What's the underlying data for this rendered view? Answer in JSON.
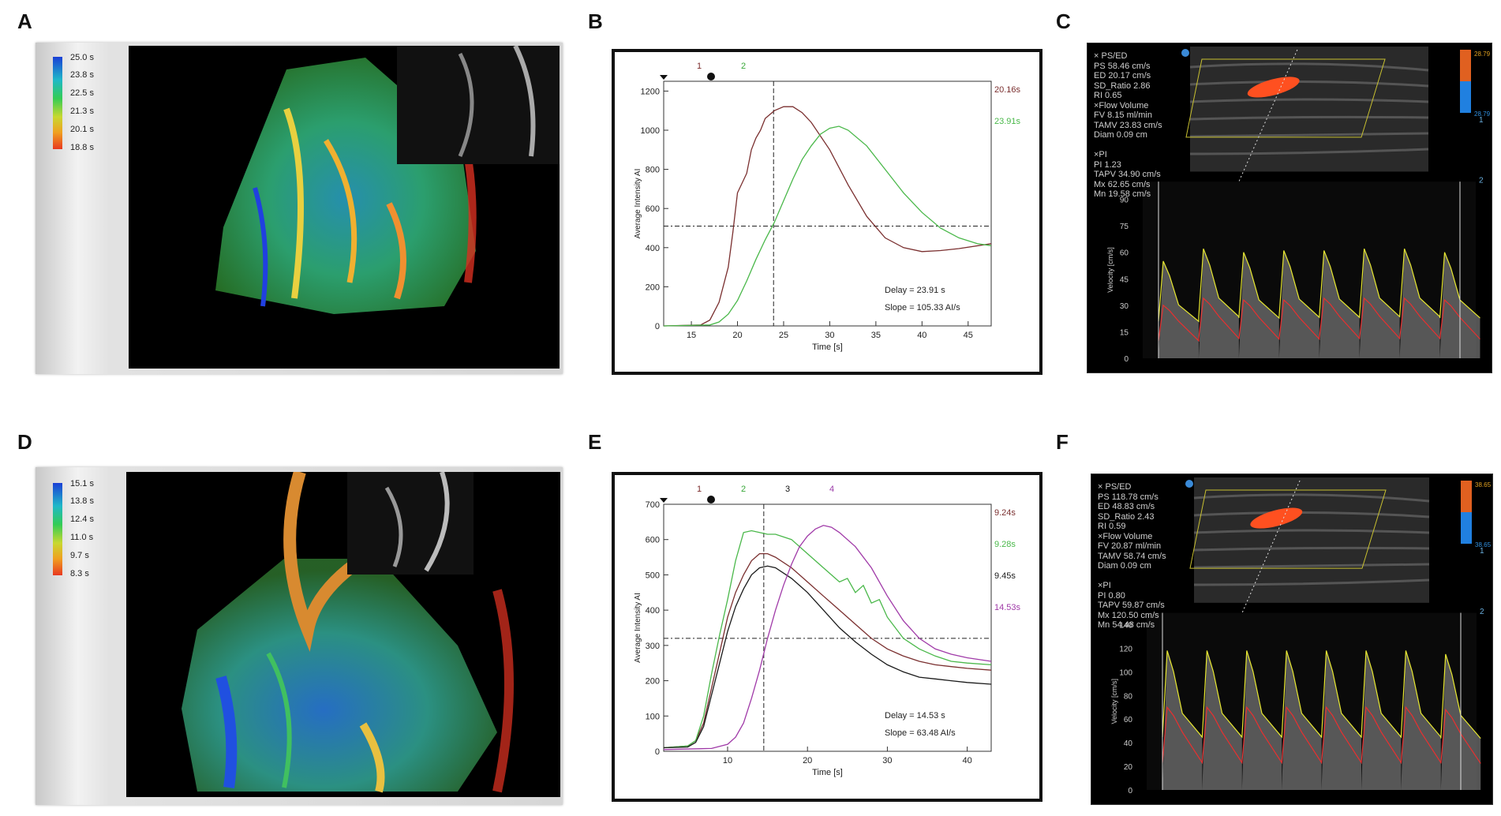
{
  "panels": {
    "A": "A",
    "B": "B",
    "C": "C",
    "D": "D",
    "E": "E",
    "F": "F"
  },
  "panelA": {
    "scale": [
      "25.0 s",
      "23.8 s",
      "22.5 s",
      "21.3 s",
      "20.1 s",
      "18.8 s"
    ],
    "scale_colors": [
      "#1a3fd6",
      "#1fb8c8",
      "#33cc55",
      "#c8d830",
      "#f0a020",
      "#e83820"
    ]
  },
  "panelD": {
    "scale": [
      "15.1 s",
      "13.8 s",
      "12.4 s",
      "11.0 s",
      "9.7 s",
      "8.3 s"
    ],
    "scale_colors": [
      "#1a3fd6",
      "#1fb8c8",
      "#33cc55",
      "#c8d830",
      "#f0a020",
      "#e83820"
    ]
  },
  "chart_data": [
    {
      "panel": "B",
      "type": "line",
      "xlabel": "Time [s]",
      "ylabel": "Average Intensity AI",
      "xlim": [
        12,
        47.5
      ],
      "ylim": [
        0,
        1250
      ],
      "xticks": [
        15,
        20,
        25,
        30,
        35,
        40,
        45
      ],
      "yticks": [
        0,
        200,
        400,
        600,
        800,
        1000,
        1200
      ],
      "marker_labels": [
        "1",
        "2"
      ],
      "marker_colors": [
        "#7a2a2a",
        "#3aa83a"
      ],
      "series": [
        {
          "name": "1",
          "color": "#7a2f2f",
          "right_label": "20.16s",
          "x": [
            12,
            16,
            17,
            18,
            19,
            19.5,
            20,
            21,
            21.5,
            22,
            22.5,
            23,
            24,
            25,
            26,
            27,
            28,
            30,
            32,
            34,
            36,
            38,
            40,
            42,
            44,
            47.5
          ],
          "y": [
            0,
            5,
            30,
            120,
            300,
            480,
            680,
            780,
            900,
            960,
            1000,
            1060,
            1100,
            1120,
            1120,
            1090,
            1040,
            900,
            720,
            560,
            450,
            400,
            380,
            385,
            395,
            420
          ]
        },
        {
          "name": "2",
          "color": "#4ab84a",
          "right_label": "23.91s",
          "x": [
            12,
            17,
            18,
            19,
            20,
            21,
            22,
            23,
            24,
            25,
            26,
            27,
            28,
            29,
            30,
            31,
            32,
            34,
            36,
            38,
            40,
            42,
            44,
            46,
            47.5
          ],
          "y": [
            0,
            5,
            20,
            60,
            130,
            230,
            340,
            440,
            530,
            640,
            750,
            850,
            920,
            980,
            1010,
            1020,
            1000,
            920,
            800,
            680,
            580,
            500,
            450,
            420,
            410
          ]
        }
      ],
      "threshold_y": 510,
      "delay_x": 23.91,
      "annotations": [
        "Delay = 23.91 s",
        "Slope = 105.33 AI/s"
      ]
    },
    {
      "panel": "E",
      "type": "line",
      "xlabel": "Time [s]",
      "ylabel": "Average Intensity AI",
      "xlim": [
        2,
        43
      ],
      "ylim": [
        0,
        700
      ],
      "xticks": [
        10,
        20,
        30,
        40
      ],
      "yticks": [
        0,
        100,
        200,
        300,
        400,
        500,
        600,
        700
      ],
      "marker_labels": [
        "1",
        "2",
        "3",
        "4"
      ],
      "marker_colors": [
        "#7a2a2a",
        "#3aa83a",
        "#111111",
        "#9a3aa8"
      ],
      "series": [
        {
          "name": "1",
          "color": "#7a2f2f",
          "right_label": "9.24s",
          "x": [
            2,
            5,
            6,
            7,
            8,
            9,
            10,
            11,
            12,
            13,
            14,
            15,
            16,
            18,
            20,
            22,
            24,
            26,
            28,
            30,
            32,
            34,
            36,
            38,
            40,
            43
          ],
          "y": [
            10,
            15,
            30,
            80,
            180,
            280,
            380,
            450,
            500,
            540,
            560,
            560,
            550,
            520,
            480,
            440,
            400,
            360,
            320,
            290,
            270,
            255,
            245,
            240,
            235,
            230
          ]
        },
        {
          "name": "2",
          "color": "#4ab84a",
          "right_label": "9.28s",
          "x": [
            2,
            5,
            6,
            7,
            8,
            9,
            10,
            11,
            12,
            13,
            14,
            15,
            16,
            18,
            20,
            22,
            24,
            25,
            26,
            27,
            28,
            29,
            30,
            32,
            34,
            36,
            38,
            40,
            43
          ],
          "y": [
            10,
            15,
            30,
            100,
            220,
            330,
            430,
            540,
            620,
            625,
            620,
            615,
            615,
            600,
            560,
            520,
            480,
            490,
            450,
            470,
            420,
            430,
            380,
            320,
            290,
            270,
            255,
            250,
            245
          ]
        },
        {
          "name": "3",
          "color": "#1a1a1a",
          "right_label": "9.45s",
          "x": [
            2,
            5,
            6,
            7,
            8,
            9,
            10,
            11,
            12,
            13,
            14,
            15,
            16,
            18,
            20,
            22,
            24,
            26,
            28,
            30,
            32,
            34,
            36,
            38,
            40,
            43
          ],
          "y": [
            10,
            12,
            25,
            70,
            160,
            250,
            340,
            410,
            460,
            500,
            520,
            525,
            520,
            490,
            450,
            400,
            350,
            310,
            275,
            245,
            225,
            210,
            205,
            200,
            195,
            190
          ]
        },
        {
          "name": "4",
          "color": "#a03aa8",
          "right_label": "14.53s",
          "x": [
            2,
            8,
            10,
            11,
            12,
            13,
            14,
            15,
            16,
            17,
            18,
            19,
            20,
            21,
            22,
            23,
            24,
            26,
            28,
            30,
            32,
            34,
            36,
            38,
            40,
            43
          ],
          "y": [
            5,
            8,
            20,
            40,
            80,
            150,
            230,
            320,
            400,
            470,
            530,
            580,
            610,
            630,
            640,
            635,
            620,
            580,
            520,
            440,
            370,
            320,
            290,
            275,
            265,
            255
          ]
        }
      ],
      "threshold_y": 320,
      "delay_x": 14.53,
      "annotations": [
        "Delay = 14.53 s",
        "Slope = 63.48 AI/s"
      ]
    },
    {
      "panel": "C",
      "type": "line",
      "ylabel": "Velocity [cm/s]",
      "ylim": [
        0,
        100
      ],
      "yticks": [
        0,
        15,
        30,
        45,
        60,
        75,
        90
      ],
      "series": [
        {
          "name": "",
          "color": "#e8e830",
          "x": [
            0,
            1,
            2,
            3,
            4,
            5,
            6,
            7
          ],
          "y": [
            55,
            62,
            60,
            61,
            61,
            62,
            62,
            60
          ]
        },
        {
          "name": "",
          "color": "#e83030",
          "x": [
            0,
            1,
            2,
            3,
            4,
            5,
            6,
            7
          ],
          "y": [
            30,
            34,
            33,
            33,
            34,
            34,
            34,
            33
          ]
        }
      ],
      "beats": 7,
      "info_lines": [
        "× PS/ED",
        "PS 58.46 cm/s",
        "ED 20.17 cm/s",
        "SD_Ratio 2.86",
        "RI 0.65",
        "×Flow Volume",
        "FV 8.15 ml/min",
        "TAMV 23.83 cm/s",
        "Diam 0.09 cm",
        "",
        "×PI",
        "PI 1.23",
        "TAPV 34.90 cm/s",
        "Mx 62.65 cm/s",
        "Mn 19.58 cm/s"
      ],
      "color_scale_top": "28.79",
      "color_scale_bottom": "28.79",
      "side_labels": [
        "1",
        "2"
      ]
    },
    {
      "panel": "F",
      "type": "line",
      "ylabel": "Velocity [cm/s]",
      "ylim": [
        0,
        150
      ],
      "yticks": [
        0,
        20,
        40,
        60,
        80,
        100,
        120,
        140
      ],
      "series": [
        {
          "name": "",
          "color": "#e8e830",
          "x": [
            0,
            1,
            2,
            3,
            4,
            5,
            6,
            7
          ],
          "y": [
            118,
            118,
            118,
            118,
            118,
            118,
            118,
            115
          ]
        },
        {
          "name": "",
          "color": "#e83030",
          "x": [
            0,
            1,
            2,
            3,
            4,
            5,
            6,
            7
          ],
          "y": [
            70,
            70,
            70,
            70,
            70,
            70,
            70,
            68
          ]
        }
      ],
      "beats": 7,
      "info_lines": [
        "× PS/ED",
        "PS 118.78 cm/s",
        "ED 48.83 cm/s",
        "SD_Ratio 2.43",
        "RI 0.59",
        "×Flow Volume",
        "FV 20.87 ml/min",
        "TAMV 58.74 cm/s",
        "Diam 0.09 cm",
        "",
        "×PI",
        "PI 0.80",
        "TAPV 59.87 cm/s",
        "Mx 120.50 cm/s",
        "Mn 54.48 cm/s"
      ],
      "color_scale_top": "38.65",
      "color_scale_bottom": "38.65",
      "side_labels": [
        "1",
        "2"
      ]
    }
  ]
}
